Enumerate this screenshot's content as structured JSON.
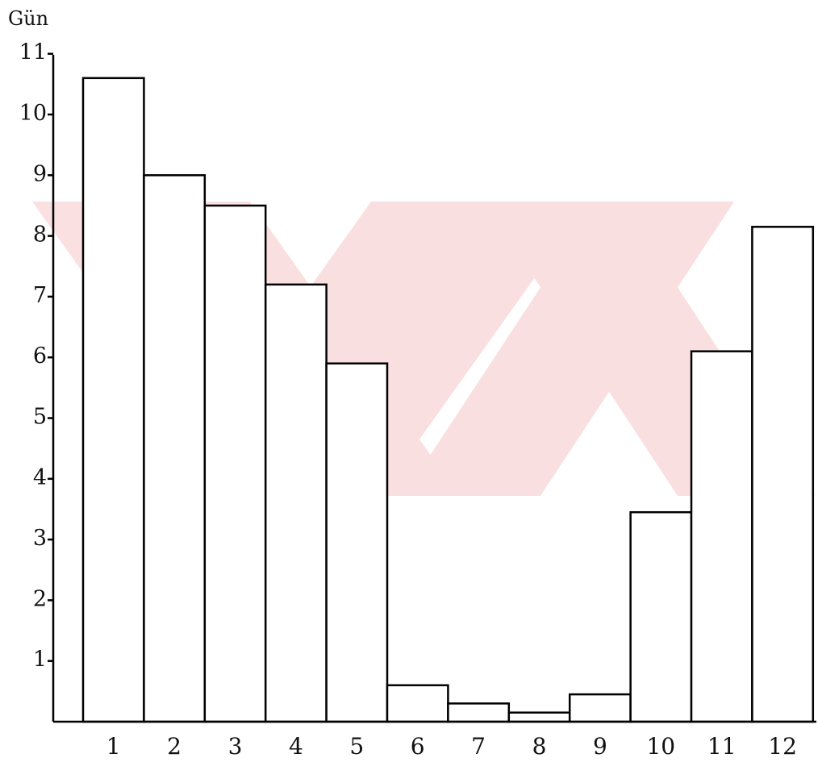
{
  "chart_data": {
    "type": "bar",
    "ylabel": "Gün",
    "xlabel": "",
    "ylim": [
      0,
      11
    ],
    "yticks": [
      1,
      2,
      3,
      4,
      5,
      6,
      7,
      8,
      9,
      10,
      11
    ],
    "categories": [
      "1",
      "2",
      "3",
      "4",
      "5",
      "6",
      "7",
      "8",
      "9",
      "10",
      "11",
      "12"
    ],
    "values": [
      10.6,
      9.0,
      8.5,
      7.2,
      5.9,
      0.6,
      0.3,
      0.15,
      0.45,
      3.45,
      6.1,
      8.15
    ],
    "grid": false,
    "colors": {
      "bar_fill": "#ffffff",
      "bar_stroke": "#000000",
      "watermark": "#f6c6c8"
    }
  }
}
